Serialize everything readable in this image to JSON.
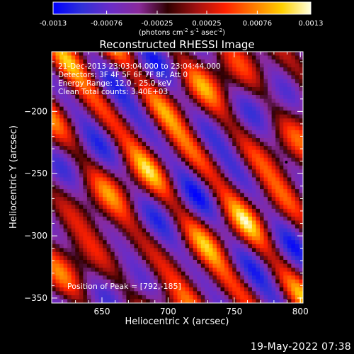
{
  "chart_data": {
    "type": "heatmap",
    "title": "Reconstructed RHESSI Image",
    "xlabel": "Heliocentric X (arcsec)",
    "ylabel": "Heliocentric Y (arcsec)",
    "xlim": [
      612,
      802
    ],
    "ylim": [
      -354,
      -152
    ],
    "x_ticks": [
      650,
      700,
      750,
      800
    ],
    "y_ticks": [
      -200,
      -250,
      -300,
      -350
    ],
    "grid": false,
    "annotations": [
      "21-Dec-2013 23:03:04.000 to 23:04:44.000",
      "Detectors: 3F 4F 5F 6F 7F 8F, Att 0",
      "Energy Range: 12.0 - 25.0 keV",
      "Clean     Total counts: 3.40E+03"
    ],
    "peak_label": "Position of Peak = [792,-185]",
    "peak": [
      792,
      -185
    ],
    "colorbar": {
      "min": -0.0013,
      "max": 0.0013,
      "tick_values": [
        -0.0013,
        -0.00076,
        -0.00025,
        0.00025,
        0.00076,
        0.0013
      ],
      "tick_labels": [
        "-0.0013",
        "-0.00076",
        "-0.00025",
        "0.00025",
        "0.00076",
        "0.0013"
      ],
      "unit_label": "(photons cm",
      "unit_exp1": "-2",
      "unit_mid": " s",
      "unit_exp2": "-1",
      "unit_mid2": " asec",
      "unit_exp3": "-2",
      "unit_end": ")",
      "colors": [
        "#0000ff",
        "#3030d8",
        "#6a2cc8",
        "#8a2a9a",
        "#300000",
        "#a01010",
        "#ff2000",
        "#ff7a00",
        "#ffd000",
        "#ffffe0"
      ]
    },
    "timestamp": "19-May-2022 07:38"
  }
}
